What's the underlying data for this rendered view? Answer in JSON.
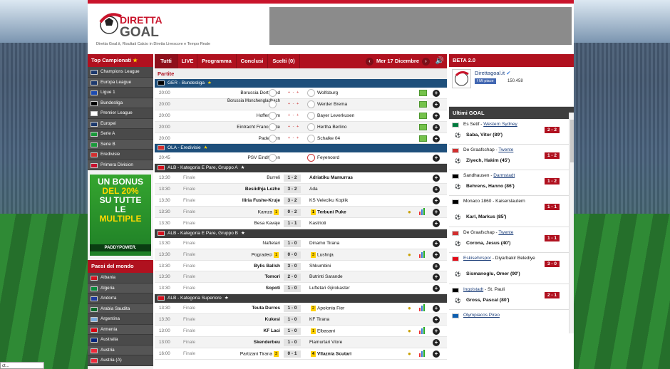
{
  "header": {
    "tagline": "Diretta Goal.it, Risultati Calcio in Diretta Livescore e Tempo Reale",
    "logo_top": "DIRETTA",
    "logo_bottom": "GOAL"
  },
  "left": {
    "top_title": "Top Campionati",
    "top_items": [
      {
        "label": "Champions League",
        "flag": "#1e3a6e"
      },
      {
        "label": "Europa League",
        "flag": "#1e3a6e"
      },
      {
        "label": "Ligue 1",
        "flag": "#1d4bb0"
      },
      {
        "label": "Bundesliga",
        "flag": "#000000"
      },
      {
        "label": "Premier League",
        "flag": "#ffffff"
      },
      {
        "label": "Europei",
        "flag": "#1e3a6e"
      },
      {
        "label": "Serie A",
        "flag": "#1a9a3a"
      },
      {
        "label": "Serie B",
        "flag": "#1a9a3a"
      },
      {
        "label": "Eredivisie",
        "flag": "#d22f2f"
      },
      {
        "label": "Primera Division",
        "flag": "#c8102e"
      }
    ],
    "ad": {
      "line1": "UN BONUS",
      "line2": "DEL 20%",
      "line3": "SU TUTTE",
      "line4": "LE",
      "line5": "MULTIPLE",
      "brand": "PADDYPOWER."
    },
    "countries_title": "Paesi del mondo",
    "countries": [
      {
        "label": "Albania",
        "flag": "#d4111f"
      },
      {
        "label": "Algeria",
        "flag": "#0a8a3c"
      },
      {
        "label": "Andorra",
        "flag": "#1e3a9e"
      },
      {
        "label": "Arabia Saudita",
        "flag": "#0a6b2a"
      },
      {
        "label": "Argentina",
        "flag": "#75aadb"
      },
      {
        "label": "Armenia",
        "flag": "#d90012"
      },
      {
        "label": "Australia",
        "flag": "#00247d"
      },
      {
        "label": "Austria",
        "flag": "#ed2939"
      },
      {
        "label": "Austria (A)",
        "flag": "#ed2939"
      }
    ]
  },
  "tabs": [
    {
      "label": "Tutti",
      "active": true
    },
    {
      "label": "LIVE",
      "active": false
    },
    {
      "label": "Programma",
      "active": false
    },
    {
      "label": "Conclusi",
      "active": false
    },
    {
      "label": "Scelti (0)",
      "active": false
    }
  ],
  "date_label": "Mer 17 Dicembre",
  "prev_arrow": "‹",
  "next_arrow": "›",
  "partite_label": "Partite",
  "leagues": [
    {
      "name": "GER - Bundesliga",
      "style": "blue",
      "flag": "#000000",
      "star": "★",
      "matches": [
        {
          "time": "20:00",
          "status": "",
          "home": "Borussia Dortmund",
          "away": "Wolfsburg",
          "score": "",
          "odds": "+ - +",
          "tv": true
        },
        {
          "time": "20:00",
          "status": "",
          "home": "Borussia Monchengladbach",
          "away": "Werder Brema",
          "score": "",
          "odds": "+ - +",
          "tv": true,
          "two_line": true
        },
        {
          "time": "20:00",
          "status": "",
          "home": "Hoffenheim",
          "away": "Bayer Leverkusen",
          "score": "",
          "odds": "+ - +",
          "tv": true
        },
        {
          "time": "20:00",
          "status": "",
          "home": "Eintracht Francoforte",
          "away": "Hertha Berlino",
          "score": "",
          "odds": "+ - +",
          "tv": true
        },
        {
          "time": "20:00",
          "status": "",
          "home": "Paderborn",
          "away": "Schalke 04",
          "score": "",
          "odds": "+ - +",
          "tv": true
        }
      ]
    },
    {
      "name": "OLA - Eredivisie",
      "style": "blue",
      "flag": "#d22f2f",
      "star": "★",
      "matches": [
        {
          "time": "20:45",
          "status": "",
          "home": "PSV Eindhoven",
          "away": "Feyenoord",
          "score": "",
          "odds": "",
          "tv": false
        }
      ]
    },
    {
      "name": "ALB - Kategoria E Pare, Gruppo A",
      "style": "dark",
      "flag": "#d4111f",
      "star": "★",
      "matches": [
        {
          "time": "13:30",
          "status": "Finale",
          "home": "Burreli",
          "away": "Adriatiku Mamurras",
          "score": "1 - 2",
          "away_bold": true
        },
        {
          "time": "13:30",
          "status": "Finale",
          "home": "Besiidhja Lezhe",
          "away": "Ada",
          "score": "3 - 2",
          "home_bold": true
        },
        {
          "time": "13:30",
          "status": "Finale",
          "home": "Iliria Fushe-Kruje",
          "away": "KS Veleciku Koplik",
          "score": "3 - 2",
          "home_bold": true
        },
        {
          "time": "13:30",
          "status": "Finale",
          "home": "Kamza",
          "away": "Terbuni Puke",
          "score": "0 - 2",
          "away_bold": true,
          "home_card": "1",
          "away_card": "1",
          "icons": true
        },
        {
          "time": "13:30",
          "status": "Finale",
          "home": "Besa Kavaje",
          "away": "Kastrioti",
          "score": "1 - 1"
        }
      ]
    },
    {
      "name": "ALB - Kategoria E Pare, Gruppo B",
      "style": "dark",
      "flag": "#d4111f",
      "star": "★",
      "matches": [
        {
          "time": "13:30",
          "status": "Finale",
          "home": "Naftetari",
          "away": "Dinamo Tirana",
          "score": "1 - 0"
        },
        {
          "time": "13:30",
          "status": "Finale",
          "home": "Pogradeci",
          "away": "Lushnja",
          "score": "0 - 0",
          "home_card": "1",
          "away_card": "3",
          "icons": true
        },
        {
          "time": "13:30",
          "status": "Finale",
          "home": "Bylis Ballsh",
          "away": "Shkumbini",
          "score": "3 - 0",
          "home_bold": true
        },
        {
          "time": "13:30",
          "status": "Finale",
          "home": "Tomori",
          "away": "Butrinti Sarande",
          "score": "2 - 0",
          "home_bold": true
        },
        {
          "time": "13:30",
          "status": "Finale",
          "home": "Sopoti",
          "away": "Luftetari Gjirokaster",
          "score": "1 - 0",
          "home_bold": true
        }
      ]
    },
    {
      "name": "ALB - Kategoria Superiore",
      "style": "dark",
      "flag": "#d4111f",
      "star": "★",
      "matches": [
        {
          "time": "13:30",
          "status": "Finale",
          "home": "Teuta Durres",
          "away": "Apolonia Fier",
          "score": "1 - 0",
          "home_bold": true,
          "away_card": "2",
          "icons": true
        },
        {
          "time": "13:30",
          "status": "Finale",
          "home": "Kukesi",
          "away": "KF Tirana",
          "score": "1 - 0",
          "home_bold": true
        },
        {
          "time": "13:00",
          "status": "Finale",
          "home": "KF Laci",
          "away": "Elbasani",
          "score": "1 - 0",
          "home_bold": true,
          "away_card": "1",
          "icons": true
        },
        {
          "time": "13:00",
          "status": "Finale",
          "home": "Skenderbeu",
          "away": "Flamurtari Vlore",
          "score": "1 - 0",
          "home_bold": true
        },
        {
          "time": "16:00",
          "status": "Finale",
          "home": "Partizani Tirana",
          "away": "Vllaznia Scutari",
          "score": "0 - 1",
          "away_bold": true,
          "home_card": "3",
          "away_card": "4",
          "icons": true
        }
      ]
    }
  ],
  "right": {
    "title": "BETA 2.0",
    "page_name": "Direttagoal.it",
    "fb_label": "Mi piace",
    "likes": "150.458",
    "ultimi_title": "Ultimi GOAL",
    "goals": [
      {
        "home": "Es Setif",
        "away": "Western Sydney",
        "away_link": true,
        "scorer": "Saba, Vitor (89')",
        "result": "2 - 2",
        "flag": "#007a3d"
      },
      {
        "home": "De Graafschap",
        "away": "Twente",
        "away_link": true,
        "scorer": "Ziyech, Hakim (45')",
        "result": "1 - 2",
        "flag": "#d22f2f"
      },
      {
        "home": "Sandhausen",
        "away": "Darmstadt",
        "away_link": true,
        "scorer": "Behrens, Hanno (86')",
        "result": "1 - 2",
        "flag": "#000000"
      },
      {
        "home": "Monaco 1860",
        "away": "Kaiserslautern",
        "away_link": false,
        "scorer": "Karl, Markus (85')",
        "result": "1 - 1",
        "flag": "#000000"
      },
      {
        "home": "De Graafschap",
        "away": "Twente",
        "away_link": true,
        "scorer": "Corona, Jesus (40')",
        "result": "1 - 1",
        "flag": "#d22f2f"
      },
      {
        "home": "Eskisehirspor",
        "away": "Diyarbakir Belediye",
        "away_link": false,
        "home_link": true,
        "scorer": "Sismanoglu, Omer (90')",
        "result": "3 - 0",
        "flag": "#e30a17"
      },
      {
        "home": "Ingolstadt",
        "away": "St. Pauli",
        "away_link": false,
        "home_link": true,
        "scorer": "Gross, Pascal (80')",
        "result": "2 - 1",
        "flag": "#000000"
      },
      {
        "home": "Olympiacos Pireo",
        "away": "",
        "away_link": false,
        "home_link": true,
        "scorer": "",
        "result": "",
        "flag": "#0d5eaf"
      }
    ]
  },
  "status_left": "ct..."
}
